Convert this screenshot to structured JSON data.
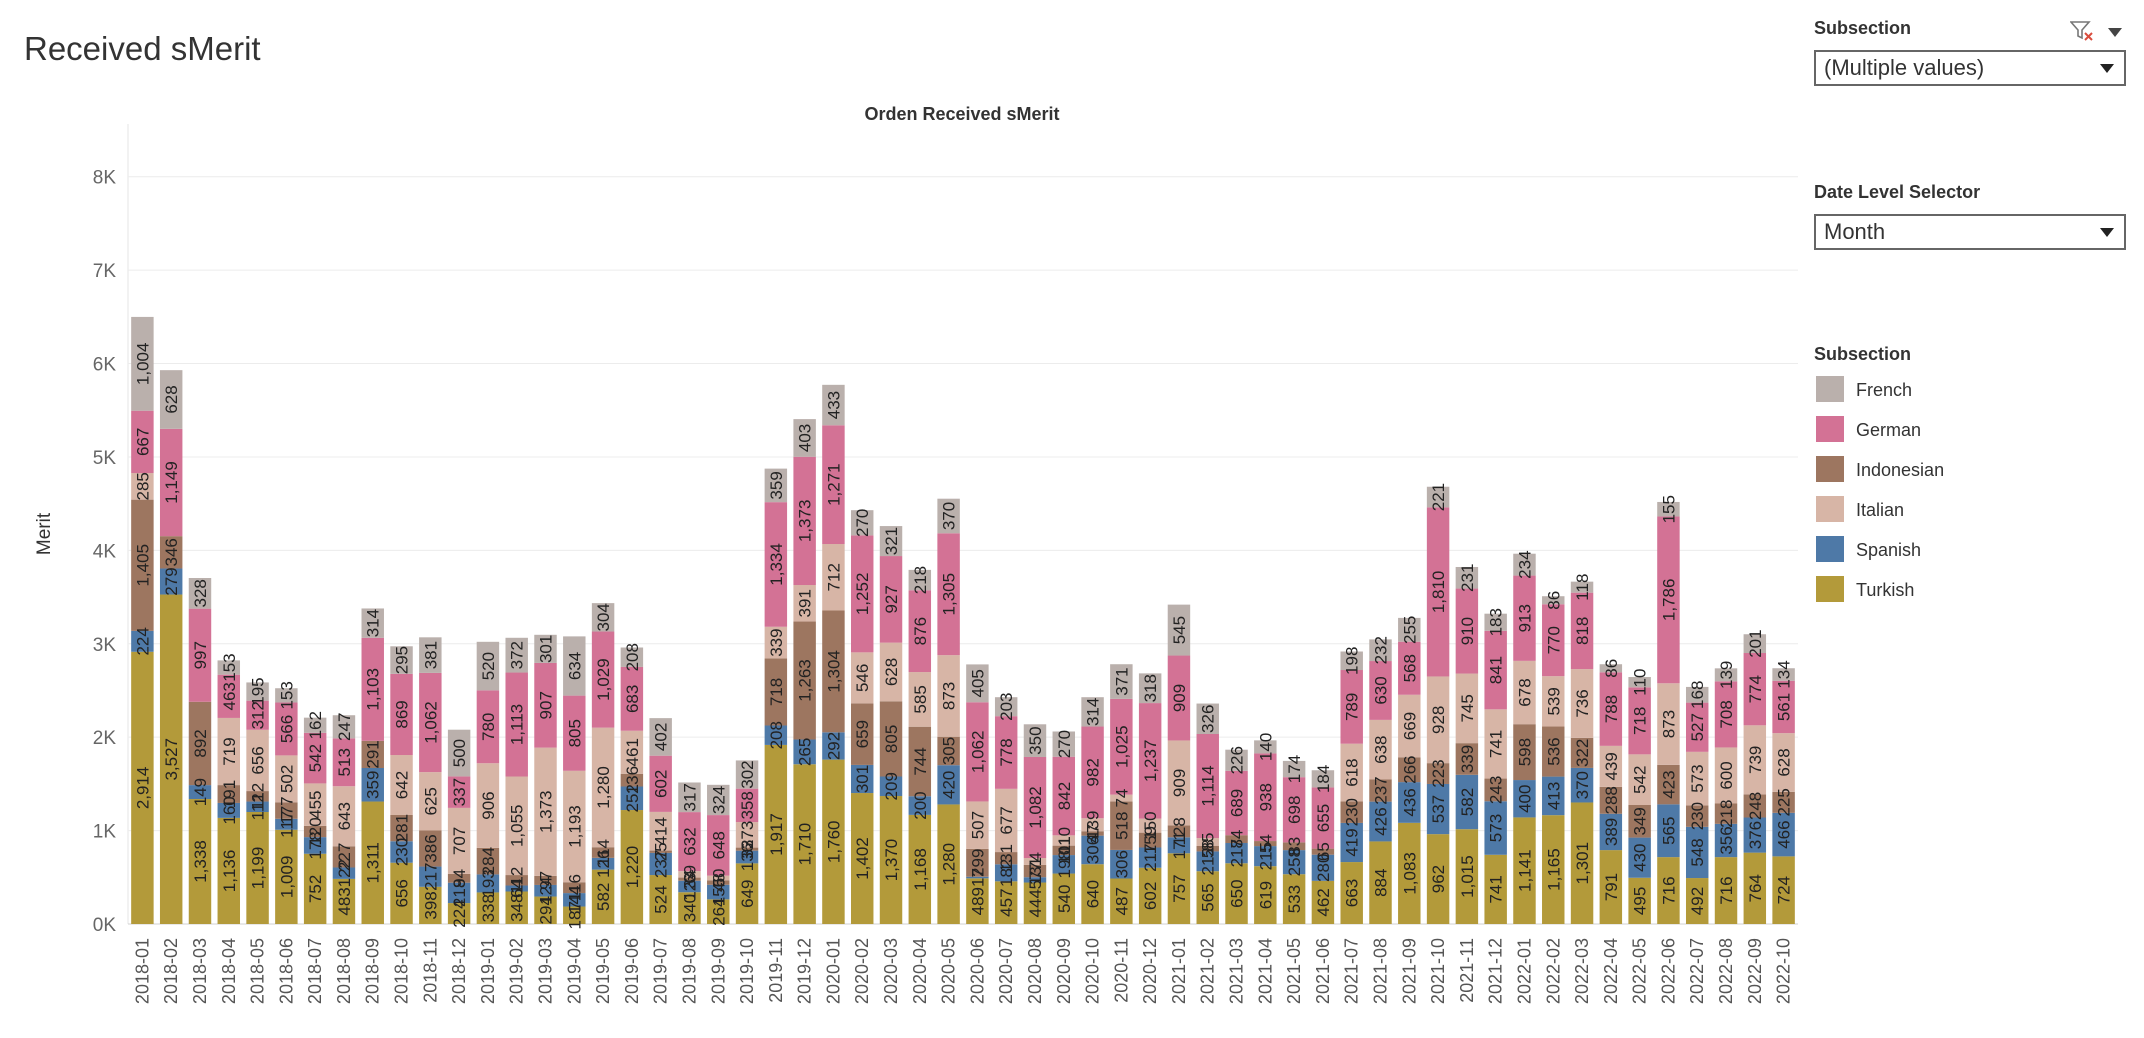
{
  "dashboard": {
    "title": "Received sMerit"
  },
  "filters": {
    "subsection": {
      "label": "Subsection",
      "value": "(Multiple values)"
    },
    "date_level": {
      "label": "Date Level Selector",
      "value": "Month"
    }
  },
  "legend": {
    "title": "Subsection",
    "items": [
      {
        "name": "French",
        "color": "#bab0ac"
      },
      {
        "name": "German",
        "color": "#d37295"
      },
      {
        "name": "Indonesian",
        "color": "#9d7660"
      },
      {
        "name": "Italian",
        "color": "#d7b5a6"
      },
      {
        "name": "Spanish",
        "color": "#4e79a7"
      },
      {
        "name": "Turkish",
        "color": "#b39a3a"
      }
    ]
  },
  "chart_data": {
    "type": "bar",
    "stacked": true,
    "title": "Orden Received sMerit",
    "xlabel": "",
    "ylabel": "Merit",
    "ylim": [
      0,
      8500
    ],
    "yticks": [
      0,
      1000,
      2000,
      3000,
      4000,
      5000,
      6000,
      7000,
      8000
    ],
    "ytick_labels": [
      "0K",
      "1K",
      "2K",
      "3K",
      "4K",
      "5K",
      "6K",
      "7K",
      "8K"
    ],
    "grid": true,
    "legend_position": "right",
    "categories": [
      "2018-01",
      "2018-02",
      "2018-03",
      "2018-04",
      "2018-05",
      "2018-06",
      "2018-07",
      "2018-08",
      "2018-09",
      "2018-10",
      "2018-11",
      "2018-12",
      "2019-01",
      "2019-02",
      "2019-03",
      "2019-04",
      "2019-05",
      "2019-06",
      "2019-07",
      "2019-08",
      "2019-09",
      "2019-10",
      "2019-11",
      "2019-12",
      "2020-01",
      "2020-02",
      "2020-03",
      "2020-04",
      "2020-05",
      "2020-06",
      "2020-07",
      "2020-08",
      "2020-09",
      "2020-10",
      "2020-11",
      "2020-12",
      "2021-01",
      "2021-02",
      "2021-03",
      "2021-04",
      "2021-05",
      "2021-06",
      "2021-07",
      "2021-08",
      "2021-09",
      "2021-10",
      "2021-11",
      "2021-12",
      "2022-01",
      "2022-02",
      "2022-03",
      "2022-04",
      "2022-05",
      "2022-06",
      "2022-07",
      "2022-08",
      "2022-09",
      "2022-10"
    ],
    "series": [
      {
        "name": "Turkish",
        "color": "#b39a3a",
        "values": [
          2914,
          3527,
          1338,
          1136,
          1199,
          1009,
          752,
          483,
          1311,
          656,
          398,
          224,
          338,
          348,
          294,
          187,
          582,
          1220,
          524,
          340,
          264,
          649,
          1917,
          1710,
          1760,
          1402,
          1370,
          1168,
          1280,
          489,
          457,
          444,
          540,
          640,
          487,
          602,
          757,
          565,
          650,
          619,
          533,
          462,
          663,
          884,
          1083,
          962,
          1015,
          741,
          1141,
          1165,
          1301,
          791,
          495,
          716,
          492,
          716,
          764,
          724
        ]
      },
      {
        "name": "Spanish",
        "color": "#4e79a7",
        "values": [
          224,
          279,
          149,
          160,
          112,
          117,
          178,
          122,
          359,
          230,
          217,
          218,
          193,
          64,
          124,
          144,
          126,
          252,
          237,
          123,
          156,
          136,
          208,
          265,
          292,
          301,
          209,
          200,
          420,
          17,
          182,
          57,
          198,
          306,
          306,
          217,
          171,
          212,
          217,
          215,
          258,
          280,
          419,
          426,
          436,
          537,
          582,
          573,
          400,
          413,
          370,
          389,
          430,
          565,
          548,
          356,
          376,
          466
        ]
      },
      {
        "name": "Indonesian",
        "color": "#9d7660",
        "values": [
          1405,
          346,
          892,
          191,
          112,
          177,
          120,
          227,
          291,
          281,
          386,
          94,
          284,
          112,
          97,
          116,
          114,
          136,
          25,
          34,
          48,
          33,
          718,
          1263,
          1304,
          659,
          805,
          744,
          305,
          299,
          131,
          131,
          101,
          47,
          518,
          159,
          128,
          58,
          84,
          54,
          83,
          65,
          230,
          237,
          266,
          223,
          339,
          243,
          598,
          536,
          322,
          288,
          349,
          423,
          230,
          218,
          248,
          225
        ]
      },
      {
        "name": "Italian",
        "color": "#d7b5a6",
        "values": [
          285,
          0,
          0,
          719,
          656,
          502,
          455,
          643,
          0,
          642,
          625,
          707,
          906,
          1055,
          1373,
          1193,
          1280,
          461,
          414,
          69,
          50,
          273,
          339,
          391,
          712,
          546,
          628,
          585,
          873,
          507,
          677,
          74,
          110,
          139,
          74,
          150,
          909,
          85,
          0,
          0,
          0,
          0,
          618,
          638,
          669,
          928,
          745,
          741,
          678,
          539,
          736,
          439,
          542,
          873,
          573,
          600,
          739,
          628
        ]
      },
      {
        "name": "German",
        "color": "#d37295",
        "values": [
          667,
          1149,
          997,
          463,
          312,
          566,
          542,
          513,
          1103,
          869,
          1062,
          337,
          780,
          1113,
          907,
          805,
          1029,
          683,
          602,
          632,
          648,
          358,
          1334,
          1373,
          1271,
          1252,
          927,
          876,
          1305,
          1062,
          778,
          1082,
          842,
          982,
          1025,
          1237,
          909,
          1114,
          689,
          938,
          698,
          655,
          789,
          630,
          568,
          1810,
          910,
          841,
          913,
          770,
          818,
          788,
          718,
          1786,
          527,
          708,
          774,
          561
        ]
      },
      {
        "name": "French",
        "color": "#bab0ac",
        "values": [
          1004,
          628,
          328,
          153,
          195,
          153,
          162,
          247,
          314,
          295,
          381,
          500,
          520,
          372,
          301,
          634,
          304,
          208,
          402,
          317,
          324,
          302,
          359,
          403,
          433,
          270,
          321,
          218,
          370,
          405,
          203,
          350,
          270,
          314,
          371,
          318,
          545,
          326,
          226,
          140,
          174,
          184,
          198,
          232,
          255,
          221,
          231,
          183,
          234,
          86,
          118,
          86,
          110,
          155,
          168,
          139,
          201,
          134
        ]
      }
    ]
  }
}
